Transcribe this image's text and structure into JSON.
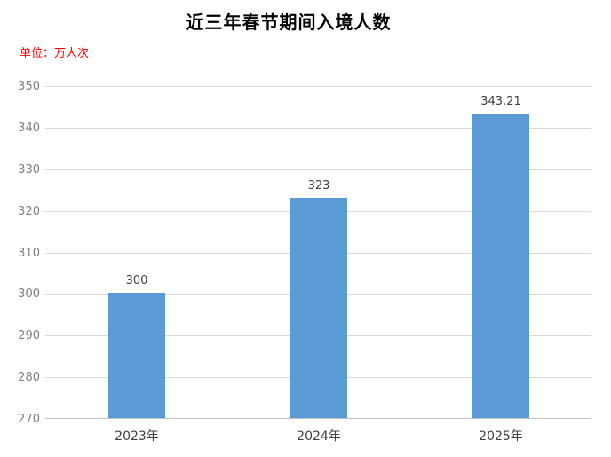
{
  "chart_data": {
    "type": "bar",
    "title": "近三年春节期间入境人数",
    "unit_label": "单位：万人次",
    "categories": [
      "2023年",
      "2024年",
      "2025年"
    ],
    "values": [
      300,
      323,
      343.21
    ],
    "data_labels": [
      "300",
      "323",
      "343.21"
    ],
    "yticks": [
      270,
      280,
      290,
      300,
      310,
      320,
      330,
      340,
      350
    ],
    "ylim": [
      270,
      350
    ],
    "grid": true,
    "legend": "none",
    "colors": {
      "bar_fill": "#5b9bd5",
      "title_text": "#000000",
      "unit_text": "#ff0000",
      "y_tick_text": "#7f7f7f",
      "x_tick_text": "#404040",
      "data_label_text": "#404040",
      "gridline": "#d9d9d9",
      "axis_line": "#bfbfbf",
      "background": "#ffffff"
    }
  }
}
